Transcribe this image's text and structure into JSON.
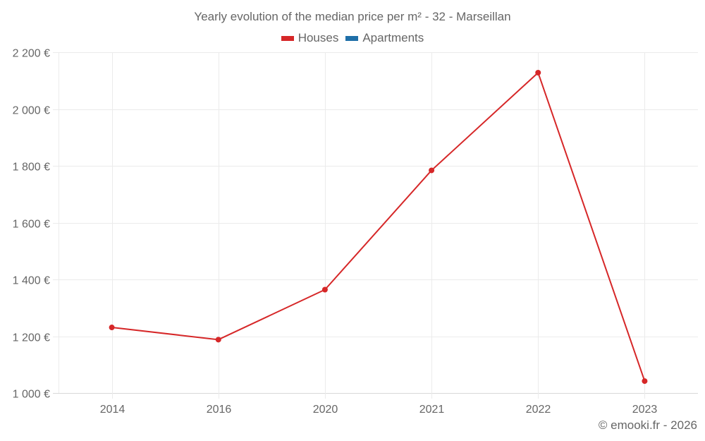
{
  "chart_data": {
    "type": "line",
    "title": "Yearly evolution of the median price per m² - 32 - Marseillan",
    "xlabel": "",
    "ylabel": "",
    "categories": [
      "2014",
      "2016",
      "2020",
      "2021",
      "2022",
      "2023"
    ],
    "series": [
      {
        "name": "Houses",
        "color": "#d62728",
        "values": [
          1231,
          1188,
          1364,
          1784,
          2128,
          1042
        ]
      },
      {
        "name": "Apartments",
        "color": "#1f6fa8",
        "values": []
      }
    ],
    "ylim": [
      1000,
      2200
    ],
    "yticks": [
      1000,
      1200,
      1400,
      1600,
      1800,
      2000,
      2200
    ],
    "ytick_labels": [
      "1 000 €",
      "1 200 €",
      "1 400 €",
      "1 600 €",
      "1 800 €",
      "2 000 €",
      "2 200 €"
    ],
    "grid": true,
    "legend_position": "top-center"
  },
  "credit": "© emooki.fr - 2026"
}
